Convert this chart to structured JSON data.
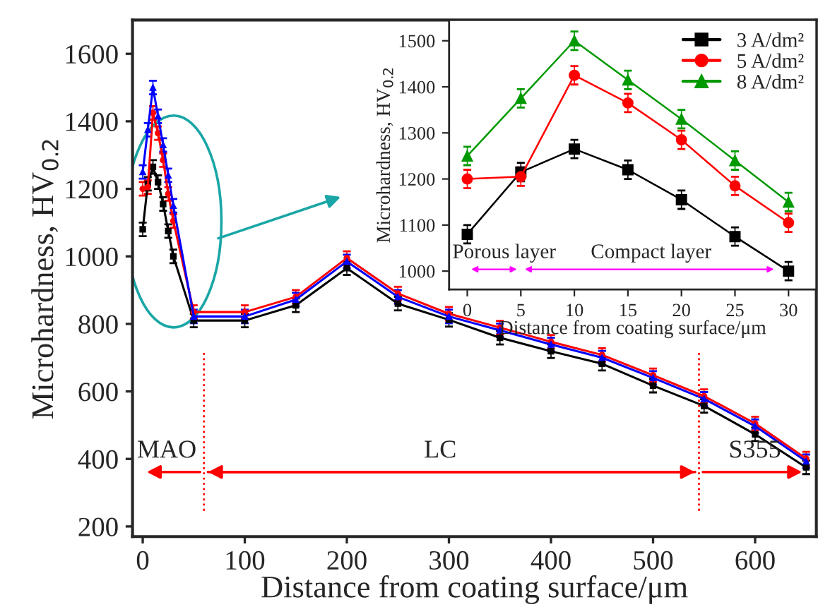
{
  "chart_data": [
    {
      "type": "line",
      "xlabel": "Distance from coating surface/μm",
      "ylabel": "Microhardness, HV$_{0.2}$",
      "x": [
        0,
        5,
        10,
        15,
        20,
        25,
        30,
        50,
        100,
        150,
        200,
        250,
        300,
        350,
        400,
        450,
        500,
        550,
        600,
        650
      ],
      "series": [
        {
          "color": "#000000",
          "marker": "square",
          "values": [
            1080,
            1215,
            1265,
            1220,
            1155,
            1075,
            1000,
            810,
            810,
            855,
            965,
            860,
            812,
            759,
            719,
            682,
            617,
            557,
            473,
            375
          ],
          "errors": [
            20,
            20,
            20,
            20,
            20,
            20,
            20,
            20,
            20,
            20,
            20,
            20,
            20,
            20,
            20,
            20,
            20,
            20,
            20,
            20
          ]
        },
        {
          "color": "#ff0000",
          "marker": "circle",
          "values": [
            1200,
            1205,
            1425,
            1365,
            1285,
            1185,
            1105,
            835,
            835,
            880,
            995,
            890,
            830,
            789,
            747,
            708,
            648,
            586,
            505,
            401
          ],
          "errors": [
            20,
            20,
            20,
            20,
            20,
            20,
            20,
            20,
            20,
            20,
            20,
            20,
            20,
            20,
            20,
            20,
            20,
            20,
            20,
            20
          ]
        },
        {
          "color": "#0000ff",
          "marker": "triangle",
          "values": [
            1250,
            1375,
            1500,
            1415,
            1330,
            1240,
            1150,
            822,
            822,
            872,
            985,
            880,
            822,
            781,
            739,
            700,
            640,
            578,
            497,
            393
          ],
          "errors": [
            20,
            20,
            20,
            20,
            20,
            20,
            20,
            20,
            20,
            20,
            20,
            20,
            20,
            20,
            20,
            20,
            20,
            20,
            20,
            20
          ]
        }
      ],
      "xlim": [
        -10,
        660
      ],
      "ylim": [
        170,
        1700
      ],
      "xticks": [
        0,
        100,
        200,
        300,
        400,
        500,
        600
      ],
      "yticks": [
        200,
        400,
        600,
        800,
        1000,
        1200,
        1400,
        1600
      ],
      "ref_lines": [
        {
          "axis": "x",
          "value": 60,
          "color": "#ff0000",
          "line_style": "dotted"
        },
        {
          "axis": "x",
          "value": 545,
          "color": "#ff0000",
          "line_style": "dotted"
        }
      ],
      "annotations": [
        "MAO",
        "LC",
        "S355"
      ],
      "line_style": "solid",
      "legend": false
    },
    {
      "type": "line",
      "xlabel": "Distance from coating surface/μm",
      "ylabel": "Microhardness, HV$_{0.2}$",
      "x": [
        0,
        5,
        10,
        15,
        20,
        25,
        30
      ],
      "series": [
        {
          "name": "3 A/dm²",
          "color": "#000000",
          "marker": "square",
          "values": [
            1080,
            1215,
            1265,
            1220,
            1155,
            1075,
            1000
          ],
          "errors": [
            20,
            20,
            20,
            20,
            20,
            20,
            20
          ]
        },
        {
          "name": "5 A/dm²",
          "color": "#ff0000",
          "marker": "circle",
          "values": [
            1200,
            1205,
            1425,
            1365,
            1285,
            1185,
            1105
          ],
          "errors": [
            20,
            20,
            20,
            20,
            20,
            20,
            20
          ]
        },
        {
          "name": "8 A/dm²",
          "color": "#009900",
          "marker": "triangle",
          "values": [
            1250,
            1375,
            1500,
            1415,
            1330,
            1240,
            1150
          ],
          "errors": [
            20,
            20,
            20,
            20,
            20,
            20,
            20
          ]
        }
      ],
      "xlim": [
        -1.7,
        32.6
      ],
      "ylim": [
        960,
        1545
      ],
      "xticks": [
        0,
        5,
        10,
        15,
        20,
        25,
        30
      ],
      "yticks": [
        1000,
        1100,
        1200,
        1300,
        1400,
        1500
      ],
      "annotations": [
        "Porous layer",
        "Compact layer"
      ],
      "line_style": "solid",
      "legend": "top right"
    }
  ]
}
